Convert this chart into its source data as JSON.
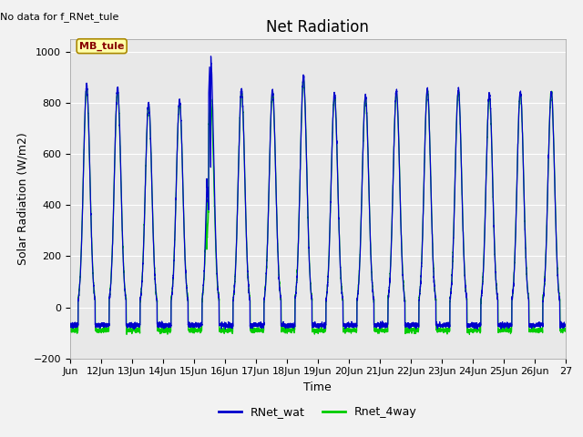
{
  "title": "Net Radiation",
  "xlabel": "Time",
  "ylabel": "Solar Radiation (W/m2)",
  "ylim": [
    -200,
    1050
  ],
  "yticks": [
    -200,
    0,
    200,
    400,
    600,
    800,
    1000
  ],
  "fig_bg_color": "#f2f2f2",
  "plot_bg_color": "#e8e8e8",
  "annotation_text": "No data for f_RNet_tule",
  "legend_label_box": "MB_tule",
  "legend_series": [
    "RNet_wat",
    "Rnet_4way"
  ],
  "blue_color": "#0000cc",
  "green_color": "#00cc00",
  "x_tick_labels": [
    "Jun",
    "12Jun",
    "13Jun",
    "14Jun",
    "15Jun",
    "16Jun",
    "17Jun",
    "18Jun",
    "19Jun",
    "20Jun",
    "21Jun",
    "22Jun",
    "23Jun",
    "24Jun",
    "25Jun",
    "26Jun",
    "27"
  ],
  "grid_color": "#ffffff",
  "title_fontsize": 12,
  "axis_fontsize": 9,
  "tick_fontsize": 8,
  "days": 16
}
